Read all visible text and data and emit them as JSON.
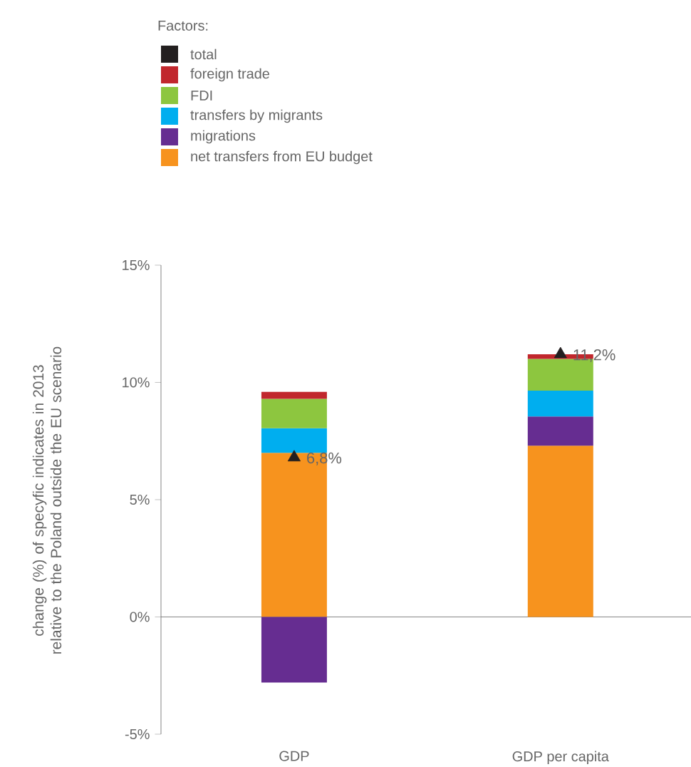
{
  "chart_data": {
    "type": "bar",
    "stacked": true,
    "legend": "top",
    "legend_title": "Factors:",
    "ylabel": "change (%) of specyfic indicates in 2013  relative to the Poland outside the EU scenario",
    "categories": [
      "GDP",
      "GDP per capita"
    ],
    "ylim": [
      -5,
      15
    ],
    "yticks": [
      {
        "value": -5,
        "label": "-5%"
      },
      {
        "value": 0,
        "label": "0%"
      },
      {
        "value": 5,
        "label": "5%"
      },
      {
        "value": 10,
        "label": "10%"
      },
      {
        "value": 15,
        "label": "15%"
      }
    ],
    "series": [
      {
        "name": "net transfers from EU budget",
        "color": "#f7931e",
        "values": [
          7.0,
          7.3
        ]
      },
      {
        "name": "migrations",
        "color": "#662d91",
        "values": [
          -2.8,
          1.25
        ]
      },
      {
        "name": "transfers by migrants",
        "color": "#00aeef",
        "values": [
          1.05,
          1.1
        ]
      },
      {
        "name": "FDI",
        "color": "#8dc63f",
        "values": [
          1.25,
          1.35
        ]
      },
      {
        "name": "foreign trade",
        "color": "#c1272d",
        "values": [
          0.3,
          0.2
        ]
      },
      {
        "name": "total",
        "type": "scatter",
        "color": "#231f20",
        "marker": "triangle",
        "values": [
          6.8,
          11.2
        ],
        "value_labels": [
          "6,8%",
          "11,2%"
        ]
      }
    ]
  }
}
